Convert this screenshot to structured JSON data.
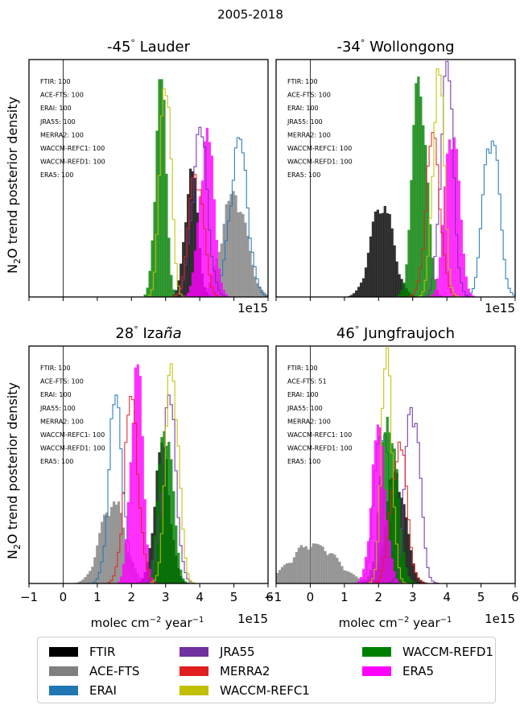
{
  "figure_title": "2005-2018",
  "ylabel_main": "trend posterior density",
  "ylabel_species": "N",
  "ylabel_sub": "2",
  "ylabel_species2": "O",
  "xlabel_main": "molec cm",
  "xlabel_exp1": "−2",
  "xlabel_mid": " year",
  "xlabel_exp2": "−1",
  "offset_label": "1e15",
  "colors": {
    "FTIR": "#000000",
    "ACE-FTS": "#808080",
    "ERAI": "#1f77b4",
    "JRA55": "#7030a0",
    "MERRA2": "#e02020",
    "WACCM-REFC1": "#c0c000",
    "WACCM-REFD1": "#008000",
    "ERA5": "#ff00ff"
  },
  "legend": [
    "FTIR",
    "ACE-FTS",
    "ERAI",
    "JRA55",
    "MERRA2",
    "WACCM-REFC1",
    "WACCM-REFD1",
    "ERA5"
  ],
  "chart_data": [
    {
      "type": "histogram",
      "title": "-45° Lauder",
      "title_pre": "-45",
      "title_deg": "°",
      "title_post": " Lauder",
      "xlim": [
        -1,
        6
      ],
      "xticks": [
        -1,
        0,
        1,
        2,
        3,
        4,
        5,
        6
      ],
      "show_xticklabels": false,
      "annotations": [
        "FTIR: 100",
        "ACE-FTS: 100",
        "ERAI: 100",
        "JRA55: 100",
        "MERRA2: 100",
        "WACCM-REFC1: 100",
        "WACCM-REFD1: 100",
        "ERA5: 100"
      ],
      "series": [
        {
          "name": "ACE-FTS",
          "mean": 5.0,
          "sd": 0.35,
          "peak": 0.45,
          "style": "fill"
        },
        {
          "name": "FTIR",
          "mean": 3.75,
          "sd": 0.18,
          "peak": 0.55,
          "style": "fill"
        },
        {
          "name": "ERA5",
          "mean": 4.2,
          "sd": 0.2,
          "peak": 0.72,
          "style": "fill"
        },
        {
          "name": "WACCM-REFD1",
          "mean": 2.85,
          "sd": 0.15,
          "peak": 0.95,
          "style": "fill"
        },
        {
          "name": "ERAI",
          "mean": 5.15,
          "sd": 0.25,
          "peak": 0.68,
          "style": "step"
        },
        {
          "name": "JRA55",
          "mean": 4.0,
          "sd": 0.22,
          "peak": 0.72,
          "style": "step"
        },
        {
          "name": "MERRA2",
          "mean": 3.9,
          "sd": 0.2,
          "peak": 0.55,
          "style": "step"
        },
        {
          "name": "WACCM-REFC1",
          "mean": 3.0,
          "sd": 0.15,
          "peak": 1.0,
          "style": "step"
        }
      ]
    },
    {
      "type": "histogram",
      "title": "-34° Wollongong",
      "title_pre": "-34",
      "title_deg": "°",
      "title_post": " Wollongong",
      "xlim": [
        -1,
        6
      ],
      "xticks": [
        -1,
        0,
        1,
        2,
        3,
        4,
        5,
        6
      ],
      "show_xticklabels": false,
      "annotations": [
        "FTIR: 100",
        "ACE-FTS: 100",
        "ERAI: 100",
        "JRA55: 100",
        "MERRA2: 100",
        "WACCM-REFC1: 100",
        "WACCM-REFD1: 100",
        "ERA5: 100"
      ],
      "series": [
        {
          "name": "FTIR",
          "mean": 2.1,
          "sd": 0.32,
          "peak": 0.4,
          "style": "fill"
        },
        {
          "name": "ERA5",
          "mean": 4.15,
          "sd": 0.2,
          "peak": 0.75,
          "style": "fill"
        },
        {
          "name": "WACCM-REFD1",
          "mean": 3.2,
          "sd": 0.2,
          "peak": 0.95,
          "style": "fill"
        },
        {
          "name": "ERAI",
          "mean": 5.3,
          "sd": 0.22,
          "peak": 0.72,
          "style": "step"
        },
        {
          "name": "JRA55",
          "mean": 4.0,
          "sd": 0.18,
          "peak": 1.0,
          "style": "step"
        },
        {
          "name": "MERRA2",
          "mean": 3.6,
          "sd": 0.2,
          "peak": 0.7,
          "style": "step"
        },
        {
          "name": "WACCM-REFC1",
          "mean": 3.75,
          "sd": 0.16,
          "peak": 0.98,
          "style": "step"
        }
      ]
    },
    {
      "type": "histogram",
      "title": "28° Izaña",
      "title_pre": "28",
      "title_deg": "°",
      "title_post": " Iza",
      "title_italic": "ña",
      "xlim": [
        -1,
        6
      ],
      "xticks": [
        -1,
        0,
        1,
        2,
        3,
        4,
        5,
        6
      ],
      "show_xticklabels": true,
      "annotations": [
        "FTIR: 100",
        "ACE-FTS: 100",
        "ERAI: 100",
        "JRA55: 100",
        "MERRA2: 100",
        "WACCM-REFC1: 100",
        "WACCM-REFD1: 100",
        "ERA5: 100"
      ],
      "series": [
        {
          "name": "ACE-FTS",
          "mean": 1.45,
          "sd": 0.35,
          "peak": 0.35,
          "style": "fill"
        },
        {
          "name": "ERA5",
          "mean": 2.15,
          "sd": 0.17,
          "peak": 0.95,
          "style": "fill"
        },
        {
          "name": "FTIR",
          "mean": 2.9,
          "sd": 0.22,
          "peak": 0.6,
          "style": "fill"
        },
        {
          "name": "WACCM-REFD1",
          "mean": 3.0,
          "sd": 0.2,
          "peak": 0.7,
          "style": "fill"
        },
        {
          "name": "ERAI",
          "mean": 1.55,
          "sd": 0.2,
          "peak": 0.8,
          "style": "step"
        },
        {
          "name": "JRA55",
          "mean": 3.1,
          "sd": 0.2,
          "peak": 0.8,
          "style": "step"
        },
        {
          "name": "MERRA2",
          "mean": 2.0,
          "sd": 0.2,
          "peak": 0.8,
          "style": "step"
        },
        {
          "name": "WACCM-REFC1",
          "mean": 3.2,
          "sd": 0.18,
          "peak": 0.95,
          "style": "step"
        }
      ]
    },
    {
      "type": "histogram",
      "title": "46° Jungfraujoch",
      "title_pre": "46",
      "title_deg": "°",
      "title_post": " Jungfraujoch",
      "xlim": [
        -1,
        6
      ],
      "xticks": [
        -1,
        0,
        1,
        2,
        3,
        4,
        5,
        6
      ],
      "show_xticklabels": true,
      "annotations": [
        "FTIR: 100",
        "ACE-FTS: 51",
        "ERAI: 100",
        "JRA55: 100",
        "MERRA2: 100",
        "WACCM-REFC1: 100",
        "WACCM-REFD1: 100",
        "ERA5: 100"
      ],
      "series": [
        {
          "name": "ACE-FTS",
          "mean": 0.1,
          "sd": 0.65,
          "peak": 0.17,
          "style": "fill"
        },
        {
          "name": "FTIR",
          "mean": 2.5,
          "sd": 0.28,
          "peak": 0.48,
          "style": "fill"
        },
        {
          "name": "WACCM-REFD1",
          "mean": 2.3,
          "sd": 0.24,
          "peak": 0.72,
          "style": "fill"
        },
        {
          "name": "ERA5",
          "mean": 2.0,
          "sd": 0.2,
          "peak": 0.68,
          "style": "fill"
        },
        {
          "name": "ERAI",
          "mean": 2.1,
          "sd": 0.2,
          "peak": 0.7,
          "style": "step"
        },
        {
          "name": "JRA55",
          "mean": 3.0,
          "sd": 0.2,
          "peak": 0.8,
          "style": "step"
        },
        {
          "name": "MERRA2",
          "mean": 2.6,
          "sd": 0.22,
          "peak": 0.6,
          "style": "step"
        },
        {
          "name": "WACCM-REFC1",
          "mean": 2.25,
          "sd": 0.15,
          "peak": 1.0,
          "style": "step"
        }
      ]
    }
  ]
}
